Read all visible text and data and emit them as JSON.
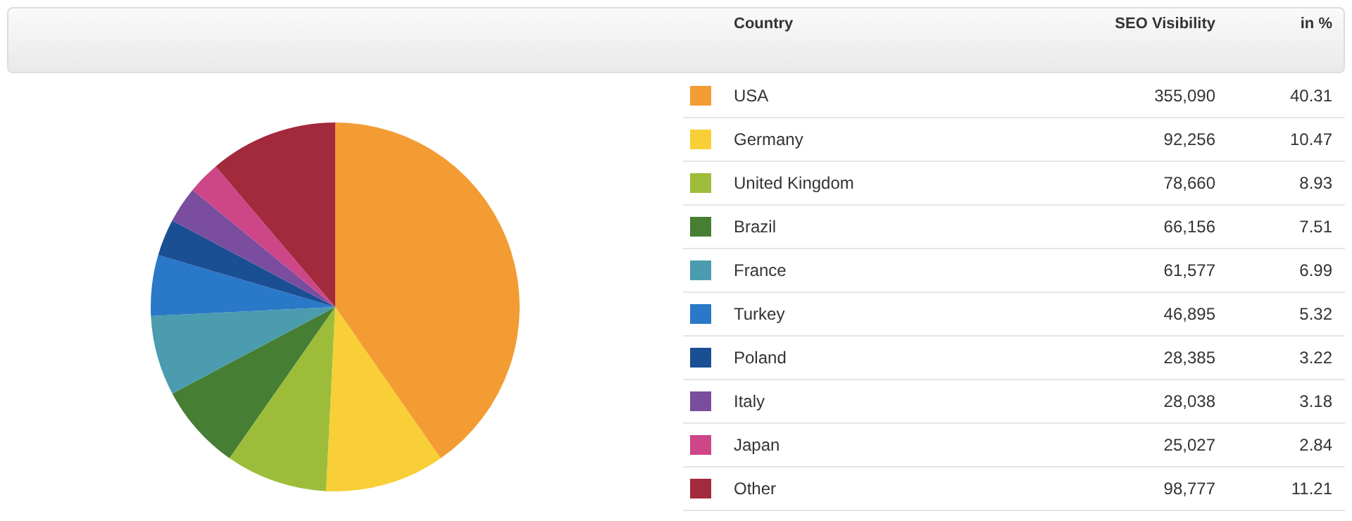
{
  "chart_data": {
    "type": "pie",
    "legend_title": "Country",
    "legend": "right",
    "categories": [
      "USA",
      "Germany",
      "United Kingdom",
      "Brazil",
      "France",
      "Turkey",
      "Poland",
      "Italy",
      "Japan",
      "Other"
    ],
    "colors": [
      "#f39c34",
      "#f8cf36",
      "#9dbd3a",
      "#467e33",
      "#4a9cae",
      "#2a78c8",
      "#1a4f94",
      "#7a4d9f",
      "#cc4688",
      "#a3293c"
    ],
    "values": [
      355090,
      92256,
      78660,
      66156,
      61577,
      46895,
      28385,
      28038,
      25027,
      98777
    ],
    "value_labels": [
      "355,090",
      "92,256",
      "78,660",
      "66,156",
      "61,577",
      "46,895",
      "28,385",
      "28,038",
      "25,027",
      "98,777"
    ],
    "annotations": [
      "SEO Visibility",
      "in %",
      "40.31",
      "10.47",
      "8.93",
      "7.51",
      "6.99",
      "5.32",
      "3.22",
      "3.18",
      "2.84",
      "11.21"
    ]
  }
}
